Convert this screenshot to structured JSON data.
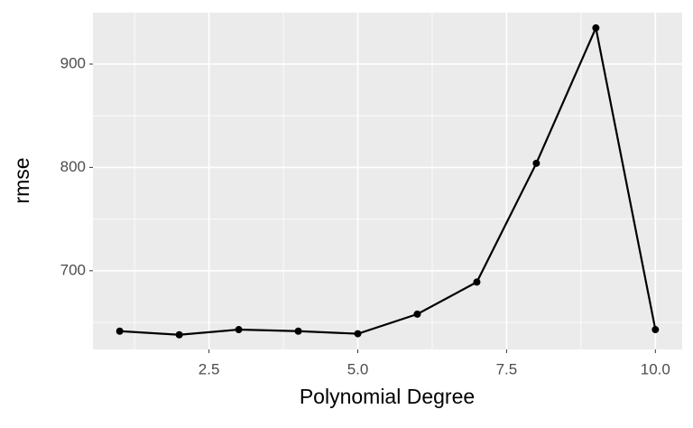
{
  "chart_data": {
    "type": "line",
    "x_label": "Polynomial Degree",
    "y_label": "rmse",
    "x": [
      1,
      2,
      3,
      4,
      5,
      6,
      7,
      8,
      9,
      10
    ],
    "values": [
      641.5,
      638,
      643,
      641.5,
      639,
      658,
      689,
      804,
      935,
      643
    ],
    "color": "#000000",
    "xlim": [
      0.55,
      10.45
    ],
    "xticks": [
      2.5,
      {
        "value": 5,
        "label": "5.0"
      },
      7.5,
      {
        "value": 10,
        "label": "10.0"
      }
    ],
    "ylim": [
      623.8,
      949.8
    ],
    "yticks": [
      700,
      800,
      900
    ],
    "grid": true
  }
}
